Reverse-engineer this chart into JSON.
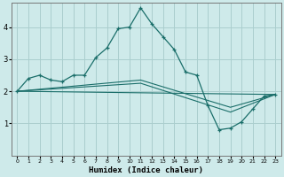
{
  "xlabel": "Humidex (Indice chaleur)",
  "ylabel": "",
  "background_color": "#ceeaea",
  "grid_color": "#aacece",
  "line_color": "#1a6e6a",
  "xlim": [
    -0.5,
    23.5
  ],
  "ylim": [
    0.0,
    4.75
  ],
  "yticks": [
    1,
    2,
    3,
    4
  ],
  "xticks": [
    0,
    1,
    2,
    3,
    4,
    5,
    6,
    7,
    8,
    9,
    10,
    11,
    12,
    13,
    14,
    15,
    16,
    17,
    18,
    19,
    20,
    21,
    22,
    23
  ],
  "series_main": {
    "x": [
      0,
      1,
      2,
      3,
      4,
      5,
      6,
      7,
      8,
      9,
      10,
      11,
      12,
      13,
      14,
      15,
      16,
      17,
      18,
      19,
      20,
      21,
      22,
      23
    ],
    "y": [
      2.0,
      2.4,
      2.5,
      2.35,
      2.3,
      2.5,
      2.5,
      3.05,
      3.35,
      3.95,
      4.0,
      4.6,
      4.1,
      3.7,
      3.3,
      2.6,
      2.5,
      1.55,
      0.8,
      0.85,
      1.05,
      1.45,
      1.85,
      1.9
    ]
  },
  "series_lines": [
    {
      "x": [
        0,
        23
      ],
      "y": [
        2.0,
        1.9
      ]
    },
    {
      "x": [
        0,
        11,
        19,
        23
      ],
      "y": [
        2.0,
        2.35,
        1.5,
        1.9
      ]
    },
    {
      "x": [
        0,
        11,
        19,
        23
      ],
      "y": [
        2.0,
        2.25,
        1.35,
        1.9
      ]
    }
  ]
}
